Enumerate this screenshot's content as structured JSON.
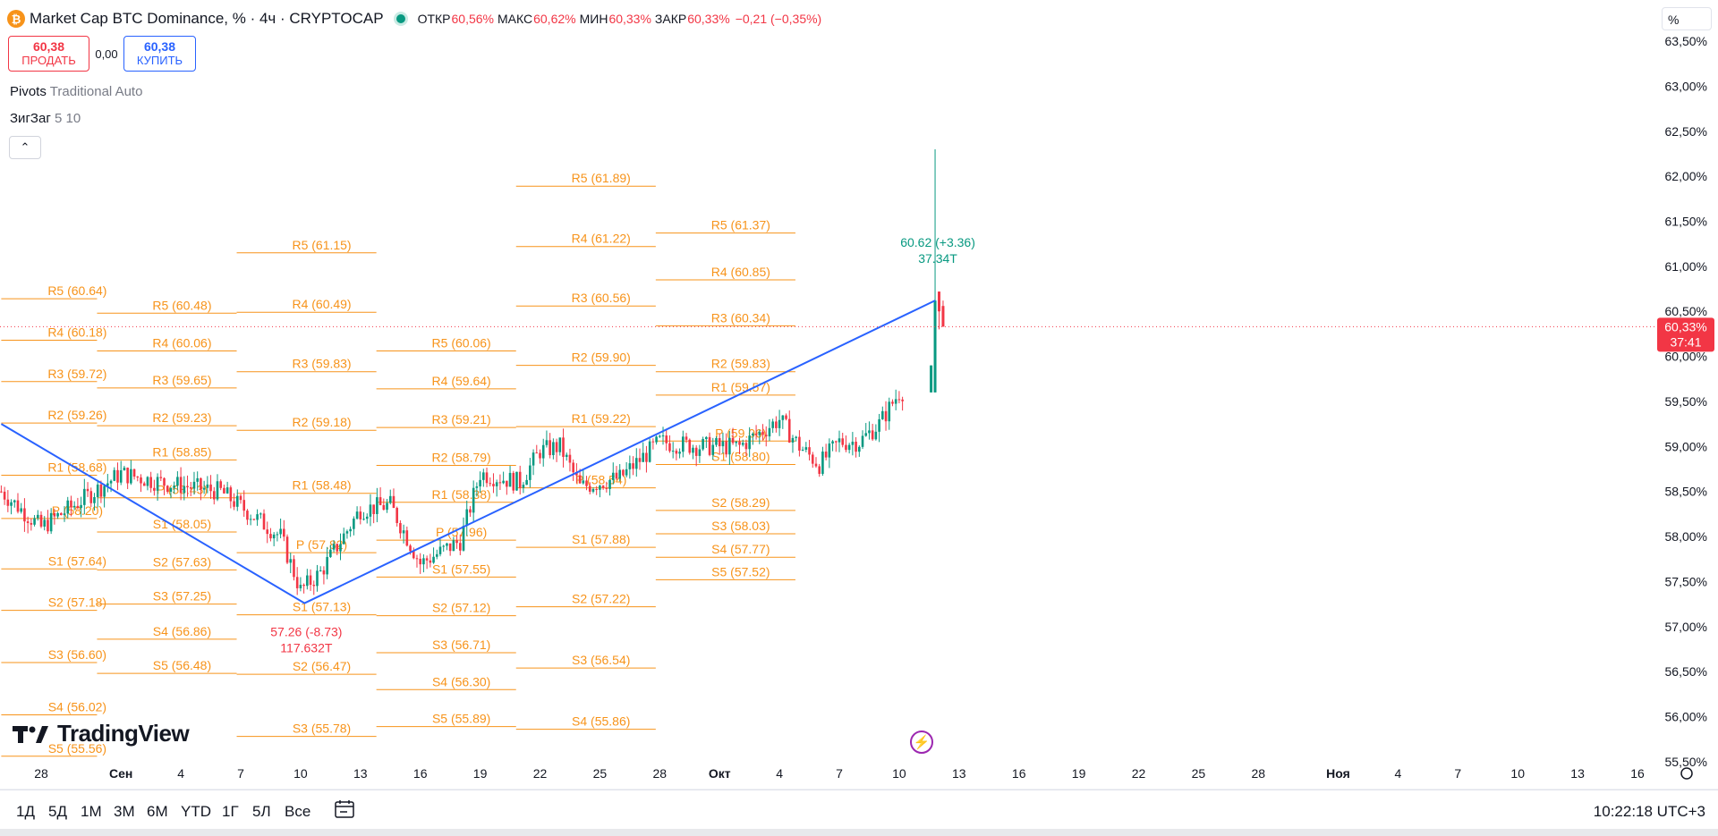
{
  "header": {
    "coin_glyph": "₿",
    "symbol": "Market Cap BTC Dominance, % · 4ч · CRYPTOCAP",
    "ohlc": [
      {
        "label": "ОТКР",
        "value": "60,56%"
      },
      {
        "label": "МАКС",
        "value": "60,62%"
      },
      {
        "label": "МИН",
        "value": "60,33%"
      },
      {
        "label": "ЗАКР",
        "value": "60,33%"
      }
    ],
    "change": "−0,21 (−0,35%)"
  },
  "trade": {
    "sell_price": "60,38",
    "sell_label": "ПРОДАТЬ",
    "spread": "0,00",
    "buy_price": "60,38",
    "buy_label": "КУПИТЬ"
  },
  "indicators": [
    {
      "name": "Pivots",
      "params": "Traditional Auto"
    },
    {
      "name": "ЗигЗаг",
      "params": "5 10"
    }
  ],
  "collapse_glyph": "⌃",
  "scale_mode": "%",
  "price_badge": {
    "price": "60,33%",
    "countdown": "37:41"
  },
  "timeframes": [
    "1Д",
    "5Д",
    "1М",
    "3М",
    "6М",
    "YTD",
    "1Г",
    "5Л",
    "Все"
  ],
  "clock": "10:22:18 UTC+3",
  "logo_text": "TradingView",
  "colors": {
    "up": "#089981",
    "down": "#f23645",
    "pivot": "#f7931a",
    "zigzag": "#2962ff",
    "grid": "#f0f3fa"
  },
  "chart_data": {
    "type": "candlestick",
    "y_range": [
      55.3,
      63.6
    ],
    "y_ticks": [
      "55,50%",
      "56,00%",
      "56,50%",
      "57,00%",
      "57,50%",
      "58,00%",
      "58,50%",
      "59,00%",
      "59,50%",
      "60,00%",
      "60,50%",
      "61,00%",
      "61,50%",
      "62,00%",
      "62,50%",
      "63,00%",
      "63,50%"
    ],
    "y_tick_values": [
      55.5,
      56,
      56.5,
      57,
      57.5,
      58,
      58.5,
      59,
      59.5,
      60,
      60.5,
      61,
      61.5,
      62,
      62.5,
      63,
      63.5
    ],
    "x_ticks": [
      "28",
      "Сен",
      "4",
      "7",
      "10",
      "13",
      "16",
      "19",
      "22",
      "25",
      "28",
      "Окт",
      "4",
      "7",
      "10",
      "13",
      "16",
      "19",
      "22",
      "25",
      "28",
      "Ноя",
      "4",
      "7",
      "10",
      "13",
      "16"
    ],
    "last_price": 60.33,
    "pivot_periods": [
      {
        "levels": [
          {
            "label": "R5 (60.64)",
            "value": 60.64
          },
          {
            "label": "R4 (60.18)",
            "value": 60.18
          },
          {
            "label": "R3 (59.72)",
            "value": 59.72
          },
          {
            "label": "R2 (59.26)",
            "value": 59.26
          },
          {
            "label": "R1 (58.68)",
            "value": 58.68
          },
          {
            "label": "P (58.20)",
            "value": 58.2
          },
          {
            "label": "S1 (57.64)",
            "value": 57.64
          },
          {
            "label": "S2 (57.18)",
            "value": 57.18
          },
          {
            "label": "S3 (56.60)",
            "value": 56.6
          },
          {
            "label": "S4 (56.02)",
            "value": 56.02
          },
          {
            "label": "S5 (55.56)",
            "value": 55.56
          }
        ]
      },
      {
        "levels": [
          {
            "label": "R5 (60.48)",
            "value": 60.48
          },
          {
            "label": "R4 (60.06)",
            "value": 60.06
          },
          {
            "label": "R3 (59.65)",
            "value": 59.65
          },
          {
            "label": "R2 (59.23)",
            "value": 59.23
          },
          {
            "label": "R1 (58.85)",
            "value": 58.85
          },
          {
            "label": "P (58.43)",
            "value": 58.43
          },
          {
            "label": "S1 (58.05)",
            "value": 58.05
          },
          {
            "label": "S2 (57.63)",
            "value": 57.63
          },
          {
            "label": "S3 (57.25)",
            "value": 57.25
          },
          {
            "label": "S4 (56.86)",
            "value": 56.86
          },
          {
            "label": "S5 (56.48)",
            "value": 56.48
          }
        ]
      },
      {
        "levels": [
          {
            "label": "R5 (61.15)",
            "value": 61.15
          },
          {
            "label": "R4 (60.49)",
            "value": 60.49
          },
          {
            "label": "R3 (59.83)",
            "value": 59.83
          },
          {
            "label": "R2 (59.18)",
            "value": 59.18
          },
          {
            "label": "R1 (58.48)",
            "value": 58.48
          },
          {
            "label": "P (57.82)",
            "value": 57.82
          },
          {
            "label": "S1 (57.13)",
            "value": 57.13
          },
          {
            "label": "S2 (56.47)",
            "value": 56.47
          },
          {
            "label": "S3 (55.78)",
            "value": 55.78
          }
        ]
      },
      {
        "levels": [
          {
            "label": "R5 (60.06)",
            "value": 60.06
          },
          {
            "label": "R4 (59.64)",
            "value": 59.64
          },
          {
            "label": "R3 (59.21)",
            "value": 59.21
          },
          {
            "label": "R2 (58.79)",
            "value": 58.79
          },
          {
            "label": "R1 (58.38)",
            "value": 58.38
          },
          {
            "label": "P (57.96)",
            "value": 57.96
          },
          {
            "label": "S1 (57.55)",
            "value": 57.55
          },
          {
            "label": "S2 (57.12)",
            "value": 57.12
          },
          {
            "label": "S3 (56.71)",
            "value": 56.71
          },
          {
            "label": "S4 (56.30)",
            "value": 56.3
          },
          {
            "label": "S5 (55.89)",
            "value": 55.89
          }
        ]
      },
      {
        "levels": [
          {
            "label": "R5 (61.89)",
            "value": 61.89
          },
          {
            "label": "R4 (61.22)",
            "value": 61.22
          },
          {
            "label": "R3 (60.56)",
            "value": 60.56
          },
          {
            "label": "R2 (59.90)",
            "value": 59.9
          },
          {
            "label": "R1 (59.22)",
            "value": 59.22
          },
          {
            "label": "P (58.54)",
            "value": 58.54
          },
          {
            "label": "S1 (57.88)",
            "value": 57.88
          },
          {
            "label": "S2 (57.22)",
            "value": 57.22
          },
          {
            "label": "S3 (56.54)",
            "value": 56.54
          },
          {
            "label": "S4 (55.86)",
            "value": 55.86
          }
        ]
      },
      {
        "levels": [
          {
            "label": "R5 (61.37)",
            "value": 61.37
          },
          {
            "label": "R4 (60.85)",
            "value": 60.85
          },
          {
            "label": "R3 (60.34)",
            "value": 60.34
          },
          {
            "label": "R2 (59.83)",
            "value": 59.83
          },
          {
            "label": "R1 (59.57)",
            "value": 59.57
          },
          {
            "label": "P (59.06)",
            "value": 59.06
          },
          {
            "label": "S1 (58.80)",
            "value": 58.8
          },
          {
            "label": "S2 (58.29)",
            "value": 58.29
          },
          {
            "label": "S3 (58.03)",
            "value": 58.03
          },
          {
            "label": "S4 (57.77)",
            "value": 57.77
          },
          {
            "label": "S5 (57.52)",
            "value": 57.52
          }
        ]
      }
    ],
    "zigzag_labels": [
      {
        "value": 57.26,
        "text1": "57.26 (-8.73)",
        "text2": "117.632T",
        "color": "#f23645"
      },
      {
        "value": 60.62,
        "text1": "60.62 (+3.36)",
        "text2": "37.34T",
        "color": "#089981"
      }
    ]
  }
}
